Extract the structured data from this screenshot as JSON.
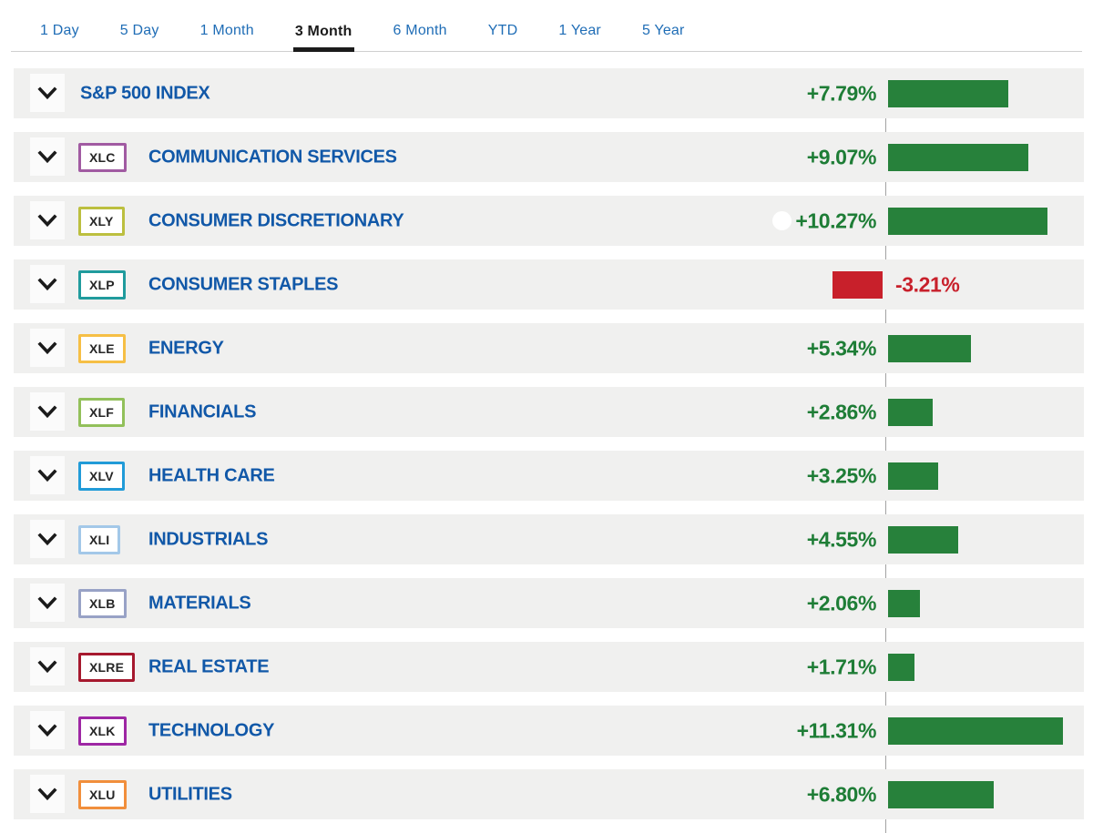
{
  "tabs": {
    "items": [
      {
        "label": "1 Day"
      },
      {
        "label": "5 Day"
      },
      {
        "label": "1 Month"
      },
      {
        "label": "3 Month"
      },
      {
        "label": "6 Month"
      },
      {
        "label": "YTD"
      },
      {
        "label": "1 Year"
      },
      {
        "label": "5 Year"
      }
    ],
    "active": "3 Month"
  },
  "chart_data": {
    "type": "bar",
    "orientation": "horizontal",
    "categories": [
      "S&P 500 INDEX",
      "COMMUNICATION SERVICES",
      "CONSUMER DISCRETIONARY",
      "CONSUMER STAPLES",
      "ENERGY",
      "FINANCIALS",
      "HEALTH CARE",
      "INDUSTRIALS",
      "MATERIALS",
      "REAL ESTATE",
      "TECHNOLOGY",
      "UTILITIES"
    ],
    "values": [
      7.79,
      9.07,
      10.27,
      -3.21,
      5.34,
      2.86,
      3.25,
      4.55,
      2.06,
      1.71,
      11.31,
      6.8
    ],
    "value_labels": [
      "+7.79%",
      "+9.07%",
      "+10.27%",
      "-3.21%",
      "+5.34%",
      "+2.86%",
      "+3.25%",
      "+4.55%",
      "+2.06%",
      "+1.71%",
      "+11.31%",
      "+6.80%"
    ],
    "xlim": [
      -3.21,
      11.31
    ],
    "positive_color": "#27813b",
    "negative_color": "#c8202b",
    "baseline_color": "#a3a3a3"
  },
  "rows": [
    {
      "ticker": null,
      "badge_color": null,
      "name": "S&P 500 INDEX",
      "value_label": "+7.79%",
      "pct": 7.79
    },
    {
      "ticker": "XLC",
      "badge_color": "#a15ba2",
      "name": "COMMUNICATION SERVICES",
      "value_label": "+9.07%",
      "pct": 9.07
    },
    {
      "ticker": "XLY",
      "badge_color": "#bcbf3f",
      "name": "CONSUMER DISCRETIONARY",
      "value_label": "+10.27%",
      "pct": 10.27
    },
    {
      "ticker": "XLP",
      "badge_color": "#209b9d",
      "name": "CONSUMER STAPLES",
      "value_label": "-3.21%",
      "pct": -3.21
    },
    {
      "ticker": "XLE",
      "badge_color": "#f6bf45",
      "name": "ENERGY",
      "value_label": "+5.34%",
      "pct": 5.34
    },
    {
      "ticker": "XLF",
      "badge_color": "#92c05a",
      "name": "FINANCIALS",
      "value_label": "+2.86%",
      "pct": 2.86
    },
    {
      "ticker": "XLV",
      "badge_color": "#219bd8",
      "name": "HEALTH CARE",
      "value_label": "+3.25%",
      "pct": 3.25
    },
    {
      "ticker": "XLI",
      "badge_color": "#a3c8e8",
      "name": "INDUSTRIALS",
      "value_label": "+4.55%",
      "pct": 4.55
    },
    {
      "ticker": "XLB",
      "badge_color": "#98a2c6",
      "name": "MATERIALS",
      "value_label": "+2.06%",
      "pct": 2.06
    },
    {
      "ticker": "XLRE",
      "badge_color": "#a6192e",
      "name": "REAL ESTATE",
      "value_label": "+1.71%",
      "pct": 1.71
    },
    {
      "ticker": "XLK",
      "badge_color": "#9e27a4",
      "name": "TECHNOLOGY",
      "value_label": "+11.31%",
      "pct": 11.31
    },
    {
      "ticker": "XLU",
      "badge_color": "#f18f3c",
      "name": "UTILITIES",
      "value_label": "+6.80%",
      "pct": 6.8
    }
  ],
  "colors": {
    "sector_link": "#1158a8",
    "tab_inactive": "#1f6db6",
    "tab_active": "#1b1b1b",
    "positive_text": "#1e7d36",
    "negative_text": "#c8202b",
    "row_background": "#f0f0ef"
  }
}
